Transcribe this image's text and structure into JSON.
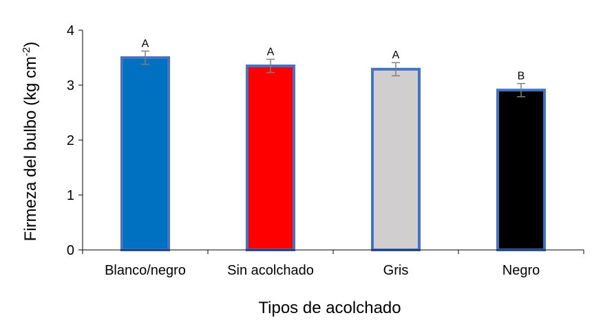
{
  "chart_data": {
    "type": "bar",
    "categories": [
      "Blanco/negro",
      "Sin acolchado",
      "Gris",
      "Negro"
    ],
    "values": [
      3.5,
      3.35,
      3.29,
      2.91
    ],
    "error": [
      0.12,
      0.12,
      0.12,
      0.12
    ],
    "significance": [
      "A",
      "A",
      "A",
      "B"
    ],
    "bar_colors": [
      "#0070C0",
      "#FF0000",
      "#D0CECE",
      "#000000"
    ],
    "bar_edge_color": "#4472C4",
    "error_bar_color": "#808080",
    "xlabel": "Tipos de acolchado",
    "ylabel": {
      "main": "Firmeza del bulbo (kg cm",
      "sup": "-2",
      "end": ")"
    },
    "ylim": [
      0,
      4
    ],
    "yticks": [
      "0",
      "1",
      "2",
      "3",
      "4"
    ],
    "grid": false,
    "legend": "none"
  }
}
